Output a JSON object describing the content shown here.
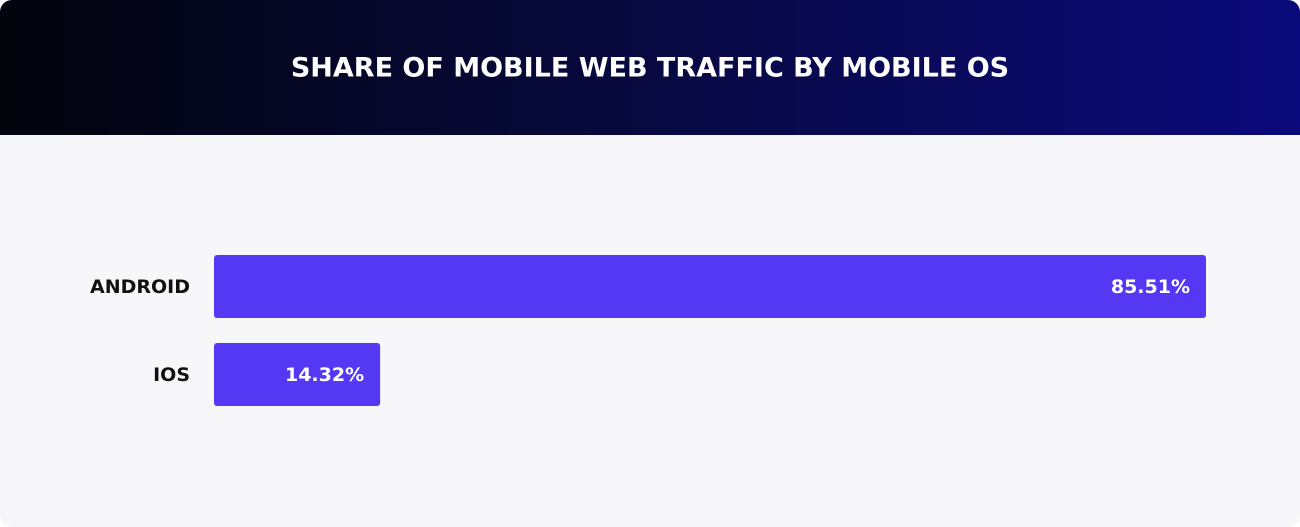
{
  "chart_data": {
    "type": "bar",
    "orientation": "horizontal",
    "title": "SHARE OF MOBILE WEB TRAFFIC BY MOBILE OS",
    "categories": [
      "ANDROID",
      "IOS"
    ],
    "values": [
      85.51,
      14.32
    ],
    "value_labels": [
      "85.51%",
      "14.32%"
    ],
    "color": "#5438f3"
  }
}
